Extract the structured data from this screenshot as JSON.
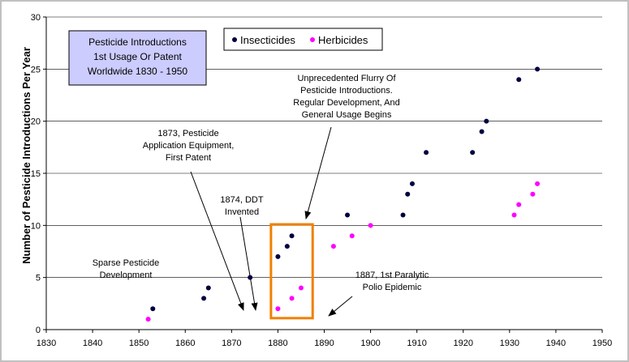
{
  "chart_data": {
    "type": "scatter",
    "title": [
      "Pesticide Introductions",
      "1st Usage Or Patent",
      "Worldwide 1830 - 1950"
    ],
    "ylabel": "Number of Pesticide Introductions Per Year",
    "xlabel": "",
    "xlim": [
      1830,
      1950
    ],
    "ylim": [
      0,
      30
    ],
    "x_ticks": [
      1830,
      1840,
      1850,
      1860,
      1870,
      1880,
      1890,
      1900,
      1910,
      1920,
      1930,
      1940,
      1950
    ],
    "y_ticks": [
      0,
      5,
      10,
      15,
      20,
      25,
      30
    ],
    "grid": "horizontal",
    "legend_position": "top-center",
    "series": [
      {
        "name": "Insecticides",
        "color": "#000040",
        "points": [
          [
            1853,
            2
          ],
          [
            1864,
            3
          ],
          [
            1865,
            4
          ],
          [
            1874,
            5
          ],
          [
            1880,
            7
          ],
          [
            1882,
            8
          ],
          [
            1883,
            9
          ],
          [
            1895,
            11
          ],
          [
            1907,
            11
          ],
          [
            1908,
            13
          ],
          [
            1909,
            14
          ],
          [
            1912,
            17
          ],
          [
            1922,
            17
          ],
          [
            1924,
            19
          ],
          [
            1925,
            20
          ],
          [
            1932,
            24
          ],
          [
            1936,
            25
          ]
        ]
      },
      {
        "name": "Herbicides",
        "color": "#ff00ff",
        "points": [
          [
            1852,
            1
          ],
          [
            1880,
            2
          ],
          [
            1883,
            3
          ],
          [
            1885,
            4
          ],
          [
            1892,
            8
          ],
          [
            1896,
            9
          ],
          [
            1900,
            10
          ],
          [
            1931,
            11
          ],
          [
            1932,
            12
          ],
          [
            1935,
            13
          ],
          [
            1936,
            14
          ]
        ]
      }
    ],
    "annotations": [
      {
        "id": "sparse",
        "lines": [
          "Sparse Pesticide",
          "Development"
        ]
      },
      {
        "id": "equip",
        "lines": [
          "1873, Pesticide",
          "Application Equipment,",
          "First Patent"
        ]
      },
      {
        "id": "ddt",
        "lines": [
          "1874, DDT",
          "Invented"
        ]
      },
      {
        "id": "flurry",
        "lines": [
          "Unprecedented Flurry Of",
          "Pesticide Introductions.",
          "Regular Development, And",
          "General Usage Begins"
        ]
      },
      {
        "id": "polio",
        "lines": [
          "1887, 1st Paralytic",
          "Polio Epidemic"
        ]
      }
    ],
    "highlight_box": {
      "x_range": [
        1878.5,
        1887.5
      ],
      "y_range": [
        1.1,
        10.1
      ],
      "color": "#f08000"
    }
  }
}
